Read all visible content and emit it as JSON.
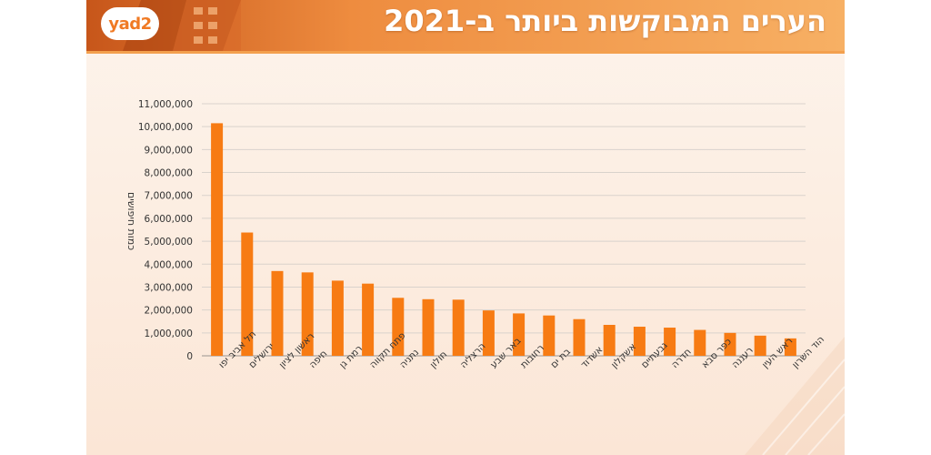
{
  "header": {
    "title": "הערים המבוקשות ביותר ב-2021",
    "logo_text": "yad2"
  },
  "colors": {
    "bar": "#f77b13",
    "grid": "#d9d2cc",
    "axis": "#555555"
  },
  "chart_data": {
    "type": "bar",
    "title": "הערים המבוקשות ביותר ב-2021",
    "ylabel": "כמות חיפושים",
    "xlabel": "",
    "ylim": [
      0,
      11000000
    ],
    "yticks": [
      0,
      1000000,
      2000000,
      3000000,
      4000000,
      5000000,
      6000000,
      7000000,
      8000000,
      9000000,
      10000000,
      11000000
    ],
    "ytick_labels": [
      "0",
      "1,000,000",
      "2,000,000",
      "3,000,000",
      "4,000,000",
      "5,000,000",
      "6,000,000",
      "7,000,000",
      "8,000,000",
      "9,000,000",
      "10,000,000",
      "11,000,000"
    ],
    "grid": true,
    "categories": [
      "תל אביב יפו",
      "ירושלים",
      "ראשון לציון",
      "חיפה",
      "רמת גן",
      "פתח תקווה",
      "נתניה",
      "חולון",
      "הרצליה",
      "באר שבע",
      "רחובות",
      "בת ים",
      "אשדוד",
      "אשקלון",
      "גבעתיים",
      "חדרה",
      "כפר סבא",
      "רעננה",
      "ראש העין",
      "הוד השרון"
    ],
    "values": [
      10150000,
      5380000,
      3700000,
      3640000,
      3280000,
      3150000,
      2530000,
      2470000,
      2450000,
      1980000,
      1850000,
      1760000,
      1600000,
      1350000,
      1270000,
      1230000,
      1130000,
      1000000,
      880000,
      760000
    ]
  }
}
